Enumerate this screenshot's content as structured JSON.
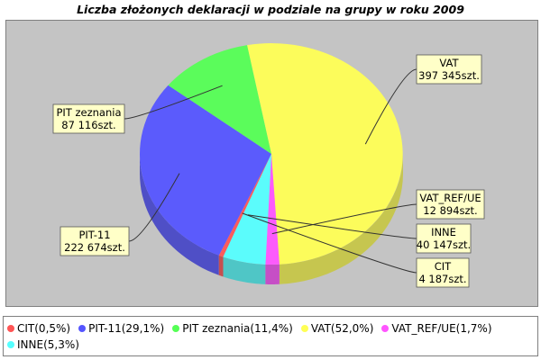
{
  "chart_data": {
    "type": "pie",
    "title": "Liczba złożonych deklaracji w podziale na grupy w roku 2009",
    "slices": [
      {
        "name": "CIT",
        "legend": "CIT(0,5%)",
        "value": 4187,
        "label_top": "CIT",
        "label_bottom": "4 187szt.",
        "color": "#ff5555"
      },
      {
        "name": "PIT-11",
        "legend": "PIT-11(29,1%)",
        "value": 222674,
        "label_top": "PIT-11",
        "label_bottom": "222 674szt.",
        "color": "#5555ff"
      },
      {
        "name": "PIT zeznania",
        "legend": "PIT zeznania(11,4%)",
        "value": 87116,
        "label_top": "PIT zeznania",
        "label_bottom": "87 116szt.",
        "color": "#55ff55"
      },
      {
        "name": "VAT",
        "legend": "VAT(52,0%)",
        "value": 397345,
        "label_top": "VAT",
        "label_bottom": "397 345szt.",
        "color": "#ffff55"
      },
      {
        "name": "VAT_REF/UE",
        "legend": "VAT_REF/UE(1,7%)",
        "value": 12894,
        "label_top": "VAT_REF/UE",
        "label_bottom": "12 894szt.",
        "color": "#ff55ff"
      },
      {
        "name": "INNE",
        "legend": "INNE(5,3%)",
        "value": 40147,
        "label_top": "INNE",
        "label_bottom": "40 147szt.",
        "color": "#55ffff"
      }
    ],
    "legend_position": "bottom"
  }
}
